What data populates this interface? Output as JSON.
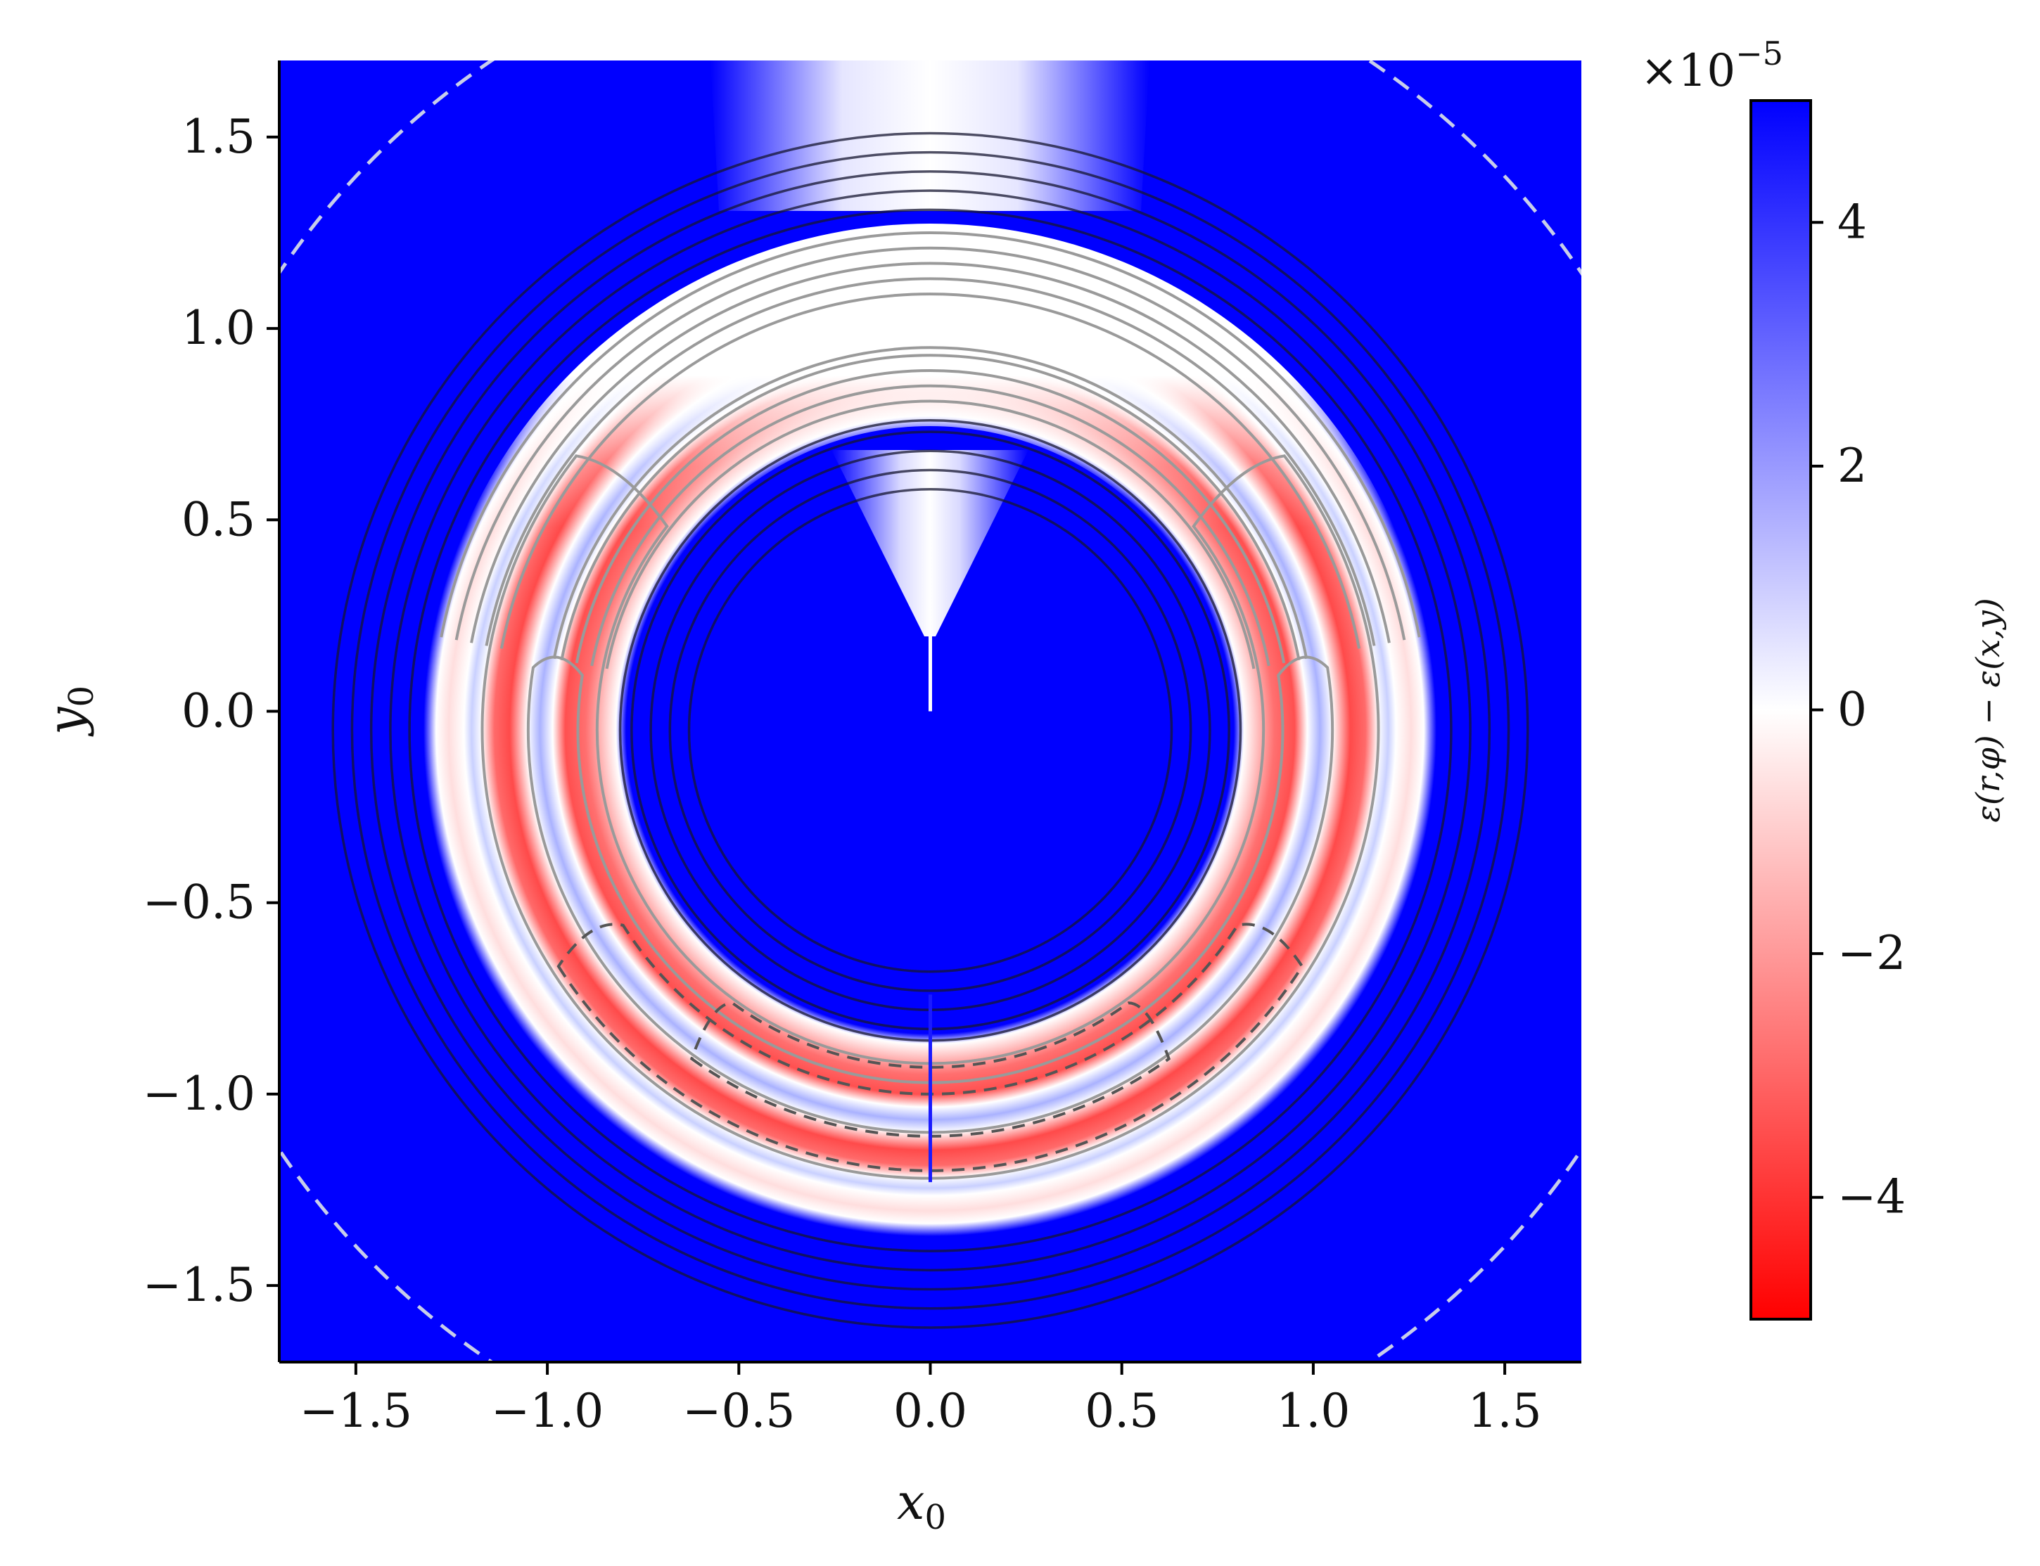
{
  "chart_data": {
    "type": "heatmap",
    "title": "",
    "xlabel_main": "x",
    "xlabel_sub": "0",
    "ylabel_main": "y",
    "ylabel_sub": "0",
    "xlim": [
      -1.7,
      1.7
    ],
    "ylim": [
      -1.7,
      1.7
    ],
    "x_ticks": [
      -1.5,
      -1.0,
      -0.5,
      0.0,
      0.5,
      1.0,
      1.5
    ],
    "x_tick_labels": [
      "−1.5",
      "−1.0",
      "−0.5",
      "0.0",
      "0.5",
      "1.0",
      "1.5"
    ],
    "y_ticks": [
      -1.5,
      -1.0,
      -0.5,
      0.0,
      0.5,
      1.0,
      1.5
    ],
    "y_tick_labels": [
      "−1.5",
      "−1.0",
      "−0.5",
      "0.0",
      "0.5",
      "1.0",
      "1.5"
    ],
    "grid": false,
    "colormap": "bwr (red = negative, white = zero, blue = positive)",
    "colorbar": {
      "label": "ε(r,φ) − ε(x,y)",
      "multiplier": "×10",
      "multiplier_exponent": "−5",
      "range": [
        -5,
        5
      ],
      "ticks": [
        -4,
        -2,
        0,
        2,
        4
      ],
      "tick_labels": [
        "−4",
        "−2",
        "0",
        "2",
        "4"
      ],
      "color_negative": "#ff0000",
      "color_zero": "#ffffff",
      "color_positive": "#0000ff"
    },
    "field_description": {
      "background_value": 5,
      "annulus_inner_radius": 0.82,
      "annulus_outer_radius": 1.32,
      "annulus_center": [
        0.0,
        -0.05
      ],
      "oscillation_rings": 3,
      "min_value_in_lower_annulus": -5
    },
    "dashed_circle": {
      "center": [
        0.0,
        0.0
      ],
      "radius": 2.05,
      "color": "#c7cdea"
    },
    "contour_lines": [
      {
        "style": "solid",
        "color": "#151530",
        "radii": [
          0.63,
          0.68,
          0.73,
          0.78,
          0.81,
          1.36,
          1.41,
          1.46,
          1.51,
          1.56
        ]
      },
      {
        "style": "solid",
        "color": "#9a9a9a",
        "radii": [
          0.86,
          0.9,
          0.94,
          0.98,
          1.0,
          1.14,
          1.18,
          1.22,
          1.26,
          1.3
        ]
      },
      {
        "style": "dashed",
        "color": "#555555",
        "type": "crescent bands in lower half"
      }
    ],
    "branch_cuts": [
      {
        "x": 0.0,
        "y_from": 0.0,
        "y_to": 0.2,
        "color": "#ffffff"
      },
      {
        "x": 0.0,
        "y_from": -0.74,
        "y_to": -1.23,
        "color": "#1a1aff"
      }
    ]
  }
}
